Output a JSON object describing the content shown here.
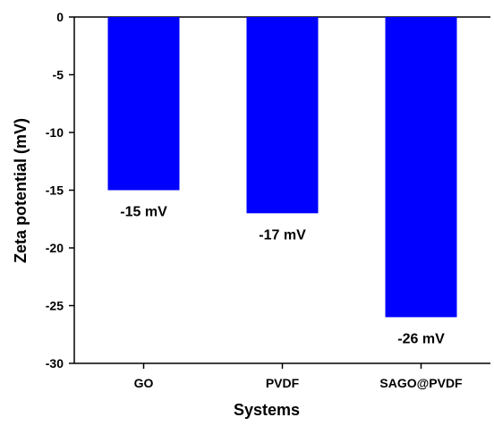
{
  "chart_data": {
    "type": "bar",
    "categories": [
      "GO",
      "PVDF",
      "SAGO@PVDF"
    ],
    "values": [
      -15,
      -17,
      -26
    ],
    "data_labels": [
      "-15 mV",
      "-17 mV",
      "-26 mV"
    ],
    "xlabel": "Systems",
    "ylabel": "Zeta potential (mV)",
    "ylim": [
      -30,
      0
    ],
    "yticks": [
      0,
      -5,
      -10,
      -15,
      -20,
      -25,
      -30
    ],
    "bar_color": "#0000FF",
    "grid": false,
    "legend": "none"
  }
}
